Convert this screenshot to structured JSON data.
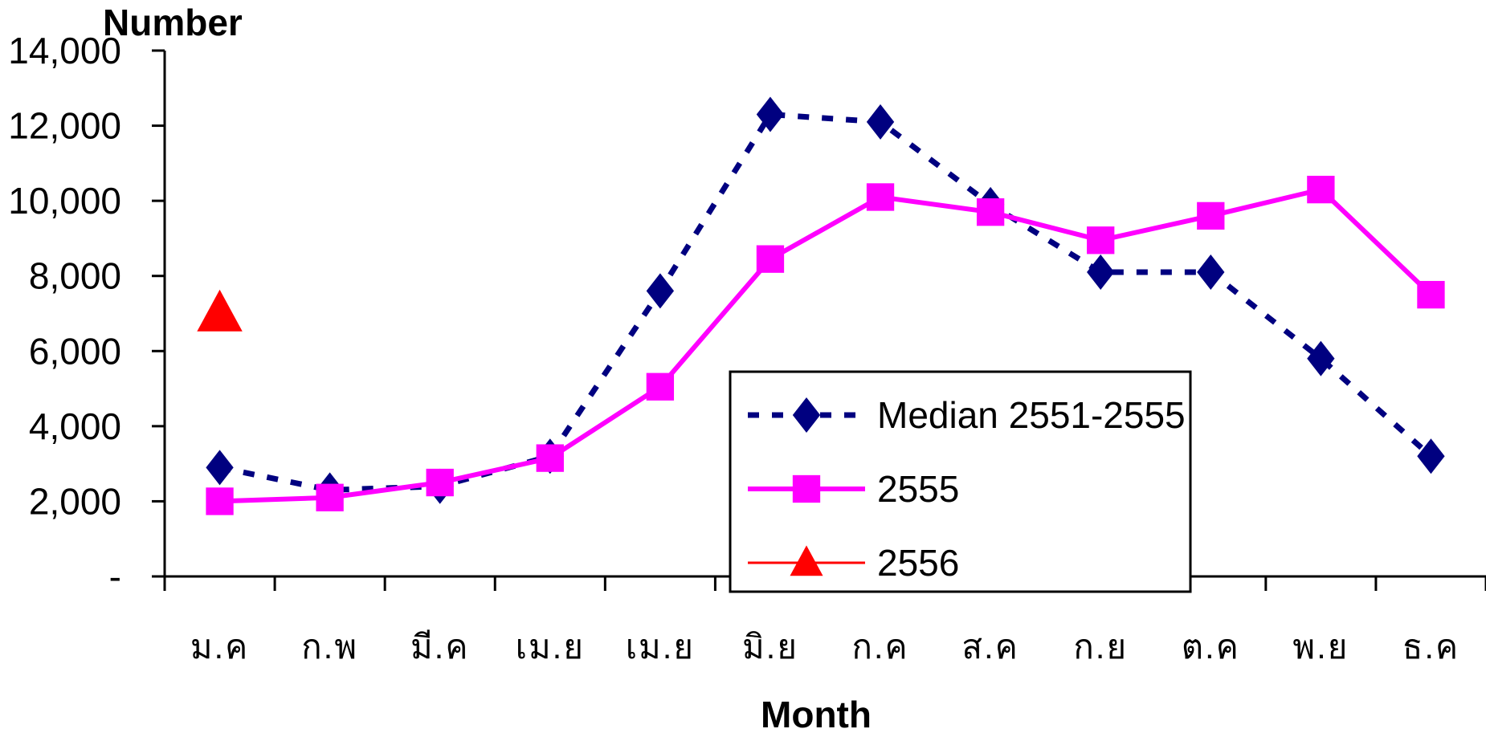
{
  "chart_data": {
    "type": "line",
    "title": "",
    "xlabel": "Month",
    "ylabel": "Number",
    "categories": [
      "ม.ค",
      "ก.พ",
      "มี.ค",
      "เม.ย",
      "เม.ย",
      "มิ.ย",
      "ก.ค",
      "ส.ค",
      "ก.ย",
      "ต.ค",
      "พ.ย",
      "ธ.ค"
    ],
    "ylim": [
      0,
      14000
    ],
    "yticks": [
      0,
      2000,
      4000,
      6000,
      8000,
      10000,
      12000,
      14000
    ],
    "ytick_labels": [
      "-",
      "2,000",
      "4,000",
      "6,000",
      "8,000",
      "10,000",
      "12,000",
      "14,000"
    ],
    "grid": false,
    "legend_position": "bottom-center",
    "series": [
      {
        "name": "Median 2551-2555",
        "color": "#000080",
        "line_style": "dashed",
        "marker": "diamond",
        "values": [
          2900,
          2300,
          2400,
          3200,
          7600,
          12300,
          12100,
          9900,
          8100,
          8100,
          5800,
          3200
        ]
      },
      {
        "name": "2555",
        "color": "#FF00FF",
        "line_style": "solid",
        "marker": "square",
        "values": [
          2000,
          2100,
          2500,
          3150,
          5050,
          8450,
          10100,
          9700,
          8950,
          9600,
          10300,
          7500
        ]
      },
      {
        "name": "2556",
        "color": "#FF0000",
        "line_style": "solid",
        "marker": "triangle",
        "values": [
          7000,
          null,
          null,
          null,
          null,
          null,
          null,
          null,
          null,
          null,
          null,
          null
        ]
      }
    ]
  }
}
